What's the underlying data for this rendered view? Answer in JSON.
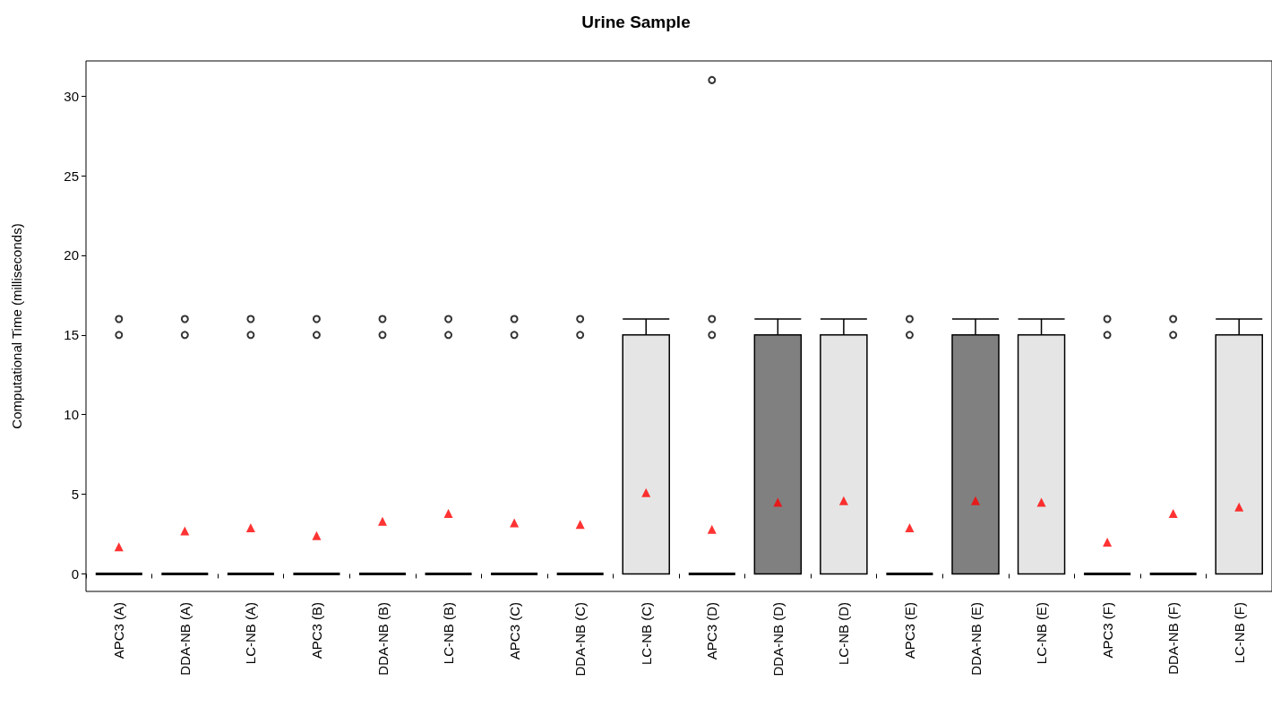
{
  "chart_data": {
    "type": "box",
    "title": "Urine Sample",
    "ylabel": "Computational Time (milliseconds)",
    "categories": [
      "APC3 (A)",
      "DDA-NB (A)",
      "LC-NB (A)",
      "APC3 (B)",
      "DDA-NB (B)",
      "LC-NB (B)",
      "APC3 (C)",
      "DDA-NB (C)",
      "LC-NB (C)",
      "APC3 (D)",
      "DDA-NB (D)",
      "LC-NB (D)",
      "APC3 (E)",
      "DDA-NB (E)",
      "LC-NB (E)",
      "APC3 (F)",
      "DDA-NB (F)",
      "LC-NB (F)"
    ],
    "ylim": [
      -1.1,
      32.2
    ],
    "yticks": [
      0,
      5,
      10,
      15,
      20,
      25,
      30
    ],
    "grid": false,
    "series": [
      {
        "colors": [
          "#000000",
          "#000000",
          "#000000",
          "#000000",
          "#000000",
          "#000000",
          "#000000",
          "#000000",
          "#e5e5e5",
          "#000000",
          "#808080",
          "#e5e5e5",
          "#000000",
          "#808080",
          "#e5e5e5",
          "#000000",
          "#000000",
          "#e5e5e5"
        ],
        "boxes": [
          {
            "low": 0,
            "q1": 0,
            "median": 0,
            "q3": 0,
            "high": 0,
            "outliers": [
              15,
              16
            ]
          },
          {
            "low": 0,
            "q1": 0,
            "median": 0,
            "q3": 0,
            "high": 0,
            "outliers": [
              15,
              16
            ]
          },
          {
            "low": 0,
            "q1": 0,
            "median": 0,
            "q3": 0,
            "high": 0,
            "outliers": [
              15,
              16
            ]
          },
          {
            "low": 0,
            "q1": 0,
            "median": 0,
            "q3": 0,
            "high": 0,
            "outliers": [
              15,
              16
            ]
          },
          {
            "low": 0,
            "q1": 0,
            "median": 0,
            "q3": 0,
            "high": 0,
            "outliers": [
              15,
              16
            ]
          },
          {
            "low": 0,
            "q1": 0,
            "median": 0,
            "q3": 0,
            "high": 0,
            "outliers": [
              15,
              16
            ]
          },
          {
            "low": 0,
            "q1": 0,
            "median": 0,
            "q3": 0,
            "high": 0,
            "outliers": [
              15,
              16
            ]
          },
          {
            "low": 0,
            "q1": 0,
            "median": 0,
            "q3": 0,
            "high": 0,
            "outliers": [
              15,
              16
            ]
          },
          {
            "low": 0,
            "q1": 0,
            "median": 0,
            "q3": 15,
            "high": 16
          },
          {
            "low": 0,
            "q1": 0,
            "median": 0,
            "q3": 0,
            "high": 0,
            "outliers": [
              15,
              16,
              31
            ]
          },
          {
            "low": 0,
            "q1": 0,
            "median": 0,
            "q3": 15,
            "high": 16
          },
          {
            "low": 0,
            "q1": 0,
            "median": 0,
            "q3": 15,
            "high": 16
          },
          {
            "low": 0,
            "q1": 0,
            "median": 0,
            "q3": 0,
            "high": 0,
            "outliers": [
              15,
              16
            ]
          },
          {
            "low": 0,
            "q1": 0,
            "median": 0,
            "q3": 15,
            "high": 16
          },
          {
            "low": 0,
            "q1": 0,
            "median": 0,
            "q3": 15,
            "high": 16
          },
          {
            "low": 0,
            "q1": 0,
            "median": 0,
            "q3": 0,
            "high": 0,
            "outliers": [
              15,
              16
            ]
          },
          {
            "low": 0,
            "q1": 0,
            "median": 0,
            "q3": 0,
            "high": 0,
            "outliers": [
              15,
              16
            ]
          },
          {
            "low": 0,
            "q1": 0,
            "median": 0,
            "q3": 15,
            "high": 16
          }
        ]
      },
      {
        "type": "scatter",
        "color": "#ff0000",
        "marker": "triangle",
        "x": [
          "APC3 (A)",
          "DDA-NB (A)",
          "LC-NB (A)",
          "APC3 (B)",
          "DDA-NB (B)",
          "LC-NB (B)",
          "APC3 (C)",
          "DDA-NB (C)",
          "LC-NB (C)",
          "APC3 (D)",
          "DDA-NB (D)",
          "LC-NB (D)",
          "APC3 (E)",
          "DDA-NB (E)",
          "LC-NB (E)",
          "APC3 (F)",
          "DDA-NB (F)",
          "LC-NB (F)"
        ],
        "values": [
          1.7,
          2.7,
          2.9,
          2.4,
          3.3,
          3.8,
          3.2,
          3.1,
          5.1,
          2.8,
          4.5,
          4.6,
          2.9,
          4.6,
          4.5,
          2.0,
          3.8,
          4.2
        ]
      }
    ]
  }
}
